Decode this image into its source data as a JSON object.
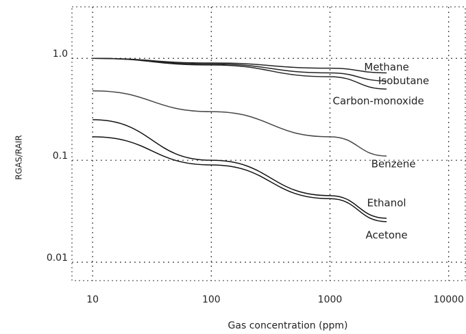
{
  "chart_data": {
    "type": "line",
    "x_label": "Gas concentration (ppm)",
    "y_label": "RGAS/RAIR",
    "x": [
      10,
      100,
      1000,
      3000
    ],
    "series": [
      {
        "name": "Methane",
        "color": "#222",
        "values": [
          1.0,
          0.9,
          0.8,
          0.72
        ]
      },
      {
        "name": "Isobutane",
        "color": "#222",
        "values": [
          1.0,
          0.88,
          0.72,
          0.6
        ]
      },
      {
        "name": "Carbon-monoxide",
        "color": "#222",
        "values": [
          1.0,
          0.86,
          0.66,
          0.5
        ]
      },
      {
        "name": "Benzene",
        "color": "#444",
        "values": [
          0.48,
          0.3,
          0.17,
          0.11
        ]
      },
      {
        "name": "Ethanol",
        "color": "#111",
        "values": [
          0.25,
          0.1,
          0.045,
          0.027
        ]
      },
      {
        "name": "Acetone",
        "color": "#111",
        "values": [
          0.17,
          0.09,
          0.042,
          0.025
        ]
      }
    ],
    "log_x": true,
    "log_y": true,
    "xlim": [
      6.7,
      14000
    ],
    "ylim": [
      0.0066,
      3.2
    ],
    "xticks": [
      10,
      100,
      1000,
      10000
    ],
    "yticks": [
      {
        "value": 0.01,
        "label": "0.01"
      },
      {
        "value": 0.1,
        "label": "0.1"
      },
      {
        "value": 1,
        "label": "1.0"
      }
    ],
    "grid": true
  }
}
